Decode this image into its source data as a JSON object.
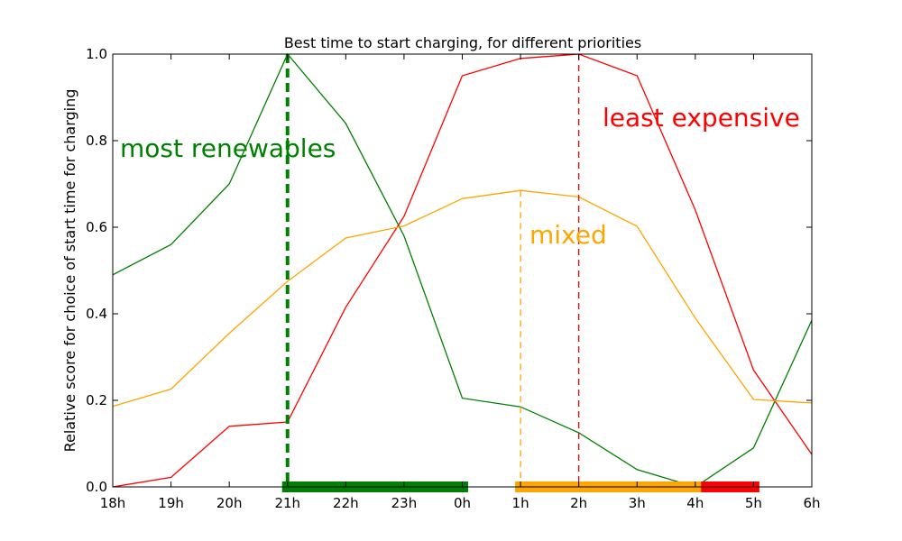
{
  "chart_data": {
    "type": "line",
    "title": "Best time to start charging, for different priorities",
    "xlabel": "",
    "ylabel": "Relative score for choice of start time for charging",
    "x": [
      "18h",
      "19h",
      "20h",
      "21h",
      "22h",
      "23h",
      "0h",
      "1h",
      "2h",
      "3h",
      "4h",
      "5h",
      "6h"
    ],
    "ylim": [
      0.0,
      1.0
    ],
    "yticks": [
      "0.0",
      "0.2",
      "0.4",
      "0.6",
      "0.8",
      "1.0"
    ],
    "grid": false,
    "series": [
      {
        "key": "renewables",
        "color": "#008000",
        "values": [
          0.49,
          0.56,
          0.7,
          1.0,
          0.84,
          0.58,
          0.205,
          0.185,
          0.125,
          0.04,
          0.0,
          0.09,
          0.385
        ]
      },
      {
        "key": "cost",
        "color": "#ff0000",
        "values": [
          0.0,
          0.022,
          0.14,
          0.15,
          0.415,
          0.625,
          0.95,
          0.99,
          1.0,
          0.95,
          0.64,
          0.27,
          0.075
        ]
      },
      {
        "key": "mixed",
        "color": "#ffa500",
        "values": [
          0.186,
          0.226,
          0.355,
          0.475,
          0.575,
          0.603,
          0.666,
          0.685,
          0.67,
          0.602,
          0.39,
          0.202,
          0.194
        ]
      }
    ],
    "best_start_markers": [
      {
        "key": "renewables",
        "x": 3.0,
        "y": 1.0,
        "color": "#008000",
        "style": "thick-dashed"
      },
      {
        "key": "mixed",
        "x": 7.0,
        "y": 0.685,
        "color": "#ffa500",
        "style": "dashed"
      },
      {
        "key": "cost",
        "x": 8.0,
        "y": 1.0,
        "color": "#ff0000",
        "style": "dashed"
      }
    ],
    "charging_windows": [
      {
        "key": "renewables",
        "start": 3.0,
        "end": 6.1,
        "color": "#008000"
      },
      {
        "key": "cost",
        "start": 8.0,
        "end": 11.1,
        "color": "#ff0000"
      },
      {
        "key": "mixed",
        "start": 7.0,
        "end": 10.1,
        "color": "#ffa500"
      }
    ],
    "annotations": [
      {
        "key": "renewables",
        "text": "most renewables",
        "color": "#008000"
      },
      {
        "key": "cost",
        "text": "least expensive",
        "color": "#ff0000"
      },
      {
        "key": "mixed",
        "text": "mixed",
        "color": "#ffa500"
      }
    ]
  }
}
